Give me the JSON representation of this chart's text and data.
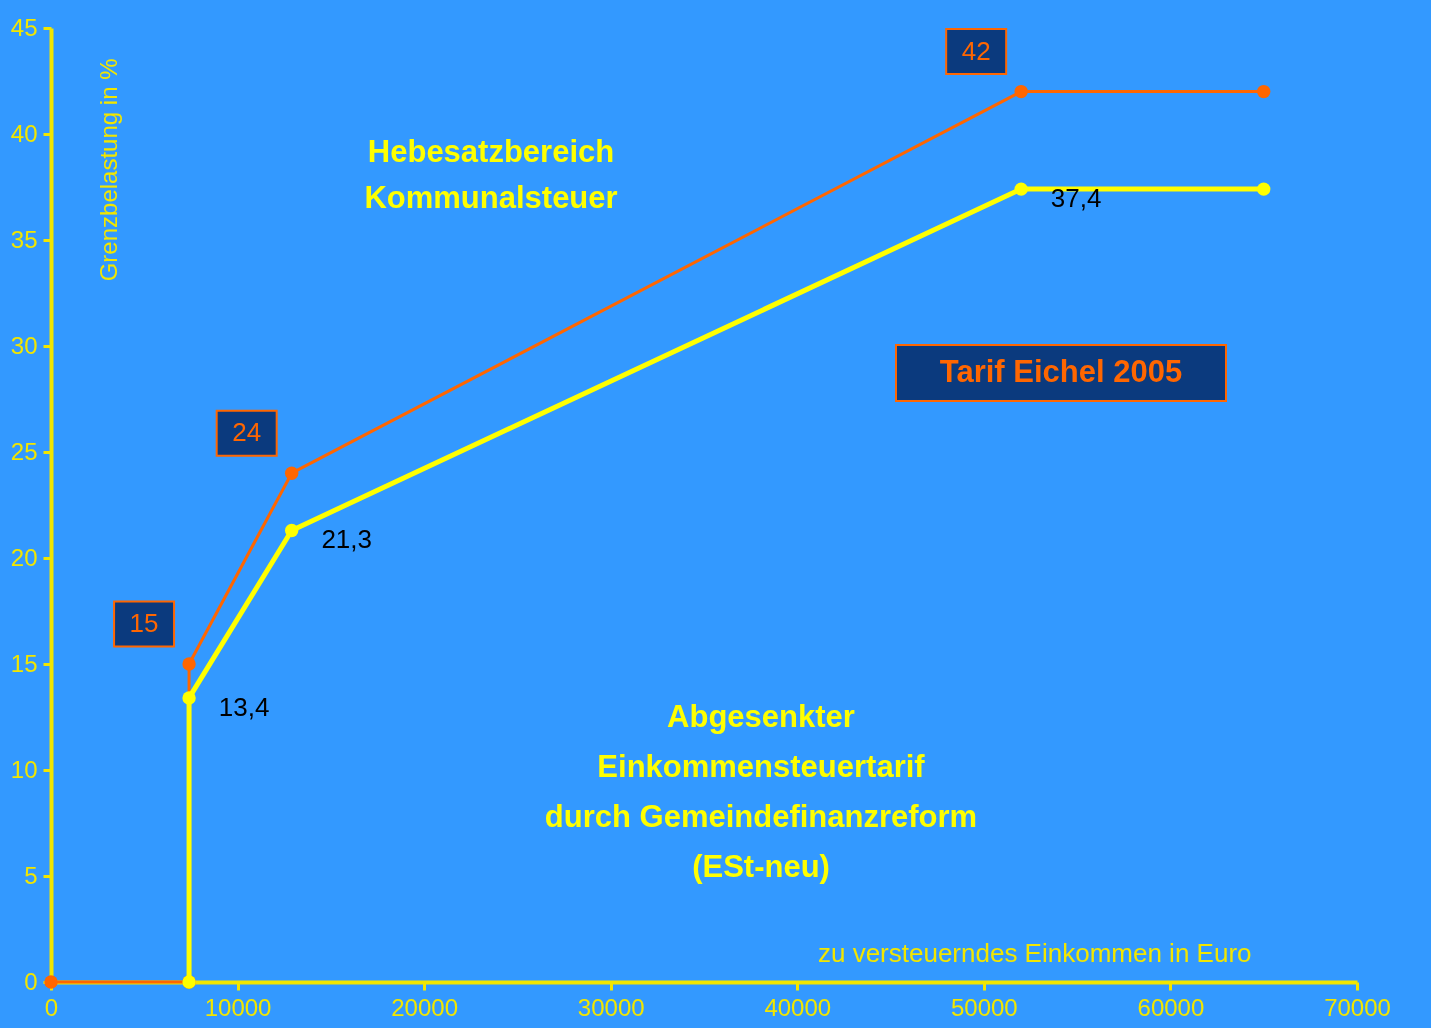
{
  "chart_data": {
    "type": "line",
    "xlabel": "zu versteuerndes Einkommen in Euro",
    "ylabel": "Grenzbelastung in %",
    "xlim": [
      0,
      70000
    ],
    "xticks": [
      0,
      10000,
      20000,
      30000,
      40000,
      50000,
      60000,
      70000
    ],
    "ylim": [
      0,
      45
    ],
    "yticks": [
      0,
      5,
      10,
      15,
      20,
      25,
      30,
      35,
      40,
      45
    ],
    "grid": false,
    "legend": false,
    "marker": "circle",
    "line_style": "solid",
    "annotations": [
      "Hebesatzbereich\nKommunalsteuer"
    ],
    "series": [
      {
        "name": "Tarif Eichel 2005",
        "color": "#ff6600",
        "x": [
          0,
          7400,
          7400,
          12900,
          52000,
          65000
        ],
        "values": [
          0,
          0,
          15,
          24,
          42,
          42
        ],
        "value_labels": [
          null,
          null,
          "15",
          "24",
          "42",
          null
        ]
      },
      {
        "name": "Abgesenkter\nEinkommensteuertarif\ndurch Gemeindefinanzreform\n(ESt-neu)",
        "color": "#ffff00",
        "x": [
          7400,
          7400,
          12900,
          52000,
          65000
        ],
        "values": [
          0,
          13.4,
          21.3,
          37.4,
          37.4
        ],
        "value_labels": [
          null,
          "13,4",
          "21,3",
          "37,4",
          null
        ]
      }
    ]
  }
}
